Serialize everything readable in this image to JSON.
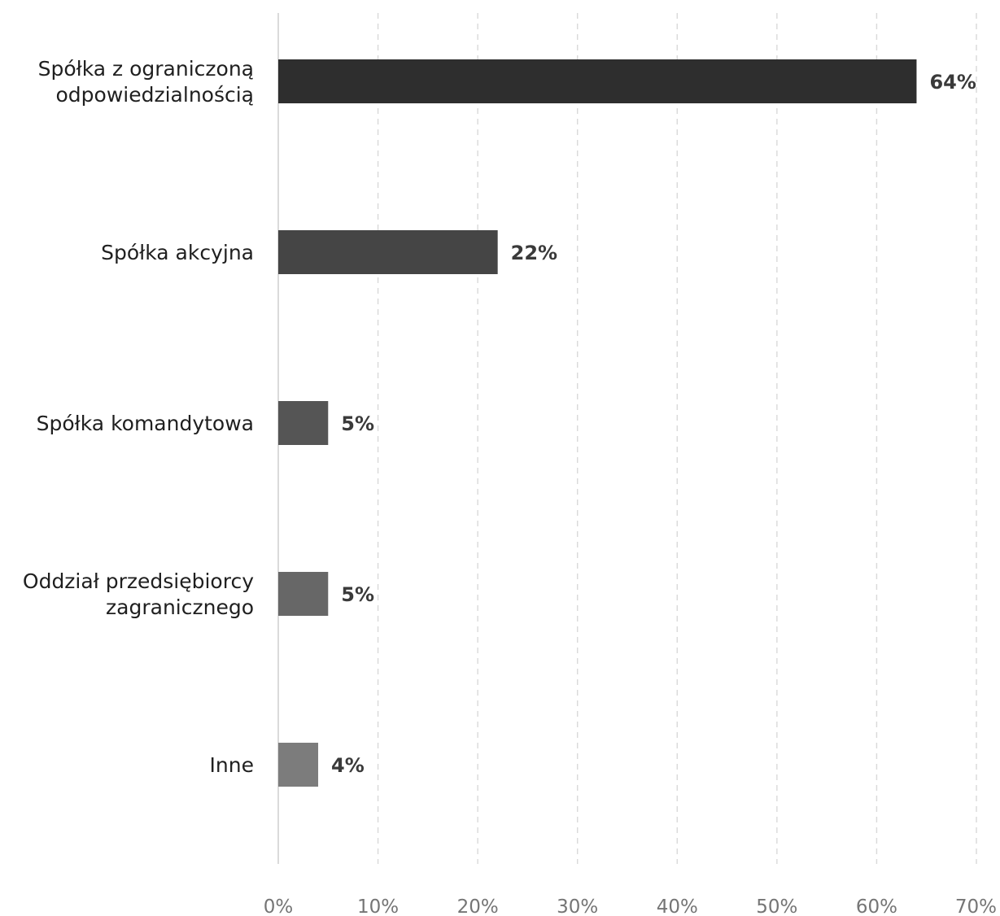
{
  "chart_data": {
    "type": "bar",
    "orientation": "horizontal",
    "categories": [
      [
        "Spółka z ograniczoną",
        "odpowiedzialnością"
      ],
      [
        "Spółka akcyjna"
      ],
      [
        "Spółka komandytowa"
      ],
      [
        "Oddział przedsiębiorcy",
        "zagranicznego"
      ],
      [
        "Inne"
      ]
    ],
    "values": [
      64,
      22,
      5,
      5,
      4
    ],
    "value_labels": [
      "64%",
      "22%",
      "5%",
      "5%",
      "4%"
    ],
    "bar_colors": [
      "#2e2e2e",
      "#454545",
      "#555555",
      "#676767",
      "#7c7c7c"
    ],
    "xlim": [
      0,
      70
    ],
    "ticks": [
      0,
      10,
      20,
      30,
      40,
      50,
      60,
      70
    ],
    "tick_labels": [
      "0%",
      "10%",
      "20%",
      "30%",
      "40%",
      "50%",
      "60%",
      "70%"
    ],
    "grid": true,
    "grid_style": "dashed",
    "title": "",
    "xlabel": "",
    "ylabel": ""
  }
}
